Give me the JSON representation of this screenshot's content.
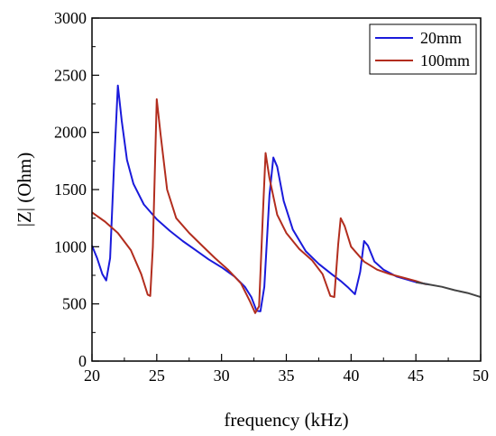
{
  "chart_data": {
    "type": "line",
    "title": "",
    "xlabel": "frequency (kHz)",
    "ylabel": "|Z| (Ohm)",
    "xlim": [
      20,
      50
    ],
    "ylim": [
      0,
      3000
    ],
    "xticks": [
      20,
      25,
      30,
      35,
      40,
      45,
      50
    ],
    "yticks": [
      0,
      500,
      1000,
      1500,
      2000,
      2500,
      3000
    ],
    "grid": false,
    "legend_position": "top-right",
    "series": [
      {
        "name": "20mm",
        "color": "#1a1adb",
        "points": [
          [
            20,
            1010
          ],
          [
            20.4,
            900
          ],
          [
            20.8,
            760
          ],
          [
            21.1,
            705
          ],
          [
            21.4,
            900
          ],
          [
            21.7,
            1700
          ],
          [
            22.0,
            2410
          ],
          [
            22.3,
            2100
          ],
          [
            22.7,
            1760
          ],
          [
            23.2,
            1550
          ],
          [
            24,
            1370
          ],
          [
            25,
            1240
          ],
          [
            26,
            1140
          ],
          [
            27,
            1050
          ],
          [
            28,
            970
          ],
          [
            29,
            890
          ],
          [
            30,
            820
          ],
          [
            31,
            740
          ],
          [
            31.8,
            650
          ],
          [
            32.3,
            560
          ],
          [
            32.7,
            440
          ],
          [
            33.0,
            435
          ],
          [
            33.3,
            650
          ],
          [
            33.7,
            1450
          ],
          [
            34.0,
            1780
          ],
          [
            34.3,
            1700
          ],
          [
            34.8,
            1400
          ],
          [
            35.5,
            1150
          ],
          [
            36.5,
            960
          ],
          [
            37.5,
            850
          ],
          [
            38.5,
            760
          ],
          [
            39.2,
            700
          ],
          [
            39.8,
            640
          ],
          [
            40.3,
            585
          ],
          [
            40.7,
            780
          ],
          [
            41.0,
            1050
          ],
          [
            41.3,
            1010
          ],
          [
            41.8,
            870
          ],
          [
            42.5,
            800
          ],
          [
            43.5,
            740
          ],
          [
            45,
            690
          ],
          [
            46,
            670
          ]
        ]
      },
      {
        "name": "100mm",
        "color": "#b22d1e",
        "points": [
          [
            20,
            1300
          ],
          [
            21,
            1220
          ],
          [
            22,
            1120
          ],
          [
            23,
            970
          ],
          [
            23.8,
            760
          ],
          [
            24.3,
            580
          ],
          [
            24.5,
            570
          ],
          [
            24.7,
            1000
          ],
          [
            25.0,
            2290
          ],
          [
            25.3,
            1980
          ],
          [
            25.8,
            1500
          ],
          [
            26.5,
            1250
          ],
          [
            27.5,
            1120
          ],
          [
            28.5,
            1010
          ],
          [
            29.5,
            900
          ],
          [
            30.5,
            800
          ],
          [
            31.5,
            680
          ],
          [
            32.2,
            520
          ],
          [
            32.6,
            420
          ],
          [
            32.9,
            480
          ],
          [
            33.2,
            1300
          ],
          [
            33.4,
            1820
          ],
          [
            33.7,
            1600
          ],
          [
            34.3,
            1280
          ],
          [
            35,
            1120
          ],
          [
            36,
            980
          ],
          [
            37,
            880
          ],
          [
            37.8,
            760
          ],
          [
            38.4,
            570
          ],
          [
            38.7,
            560
          ],
          [
            39.0,
            1020
          ],
          [
            39.2,
            1250
          ],
          [
            39.5,
            1180
          ],
          [
            40,
            1000
          ],
          [
            41,
            870
          ],
          [
            42,
            800
          ],
          [
            43,
            760
          ],
          [
            44,
            730
          ],
          [
            45,
            700
          ],
          [
            45.8,
            670
          ]
        ]
      },
      {
        "name": "",
        "color": "#444444",
        "points": [
          [
            45,
            690
          ],
          [
            46,
            670
          ],
          [
            47,
            650
          ],
          [
            48,
            620
          ],
          [
            49,
            595
          ],
          [
            50,
            560
          ]
        ]
      }
    ]
  }
}
